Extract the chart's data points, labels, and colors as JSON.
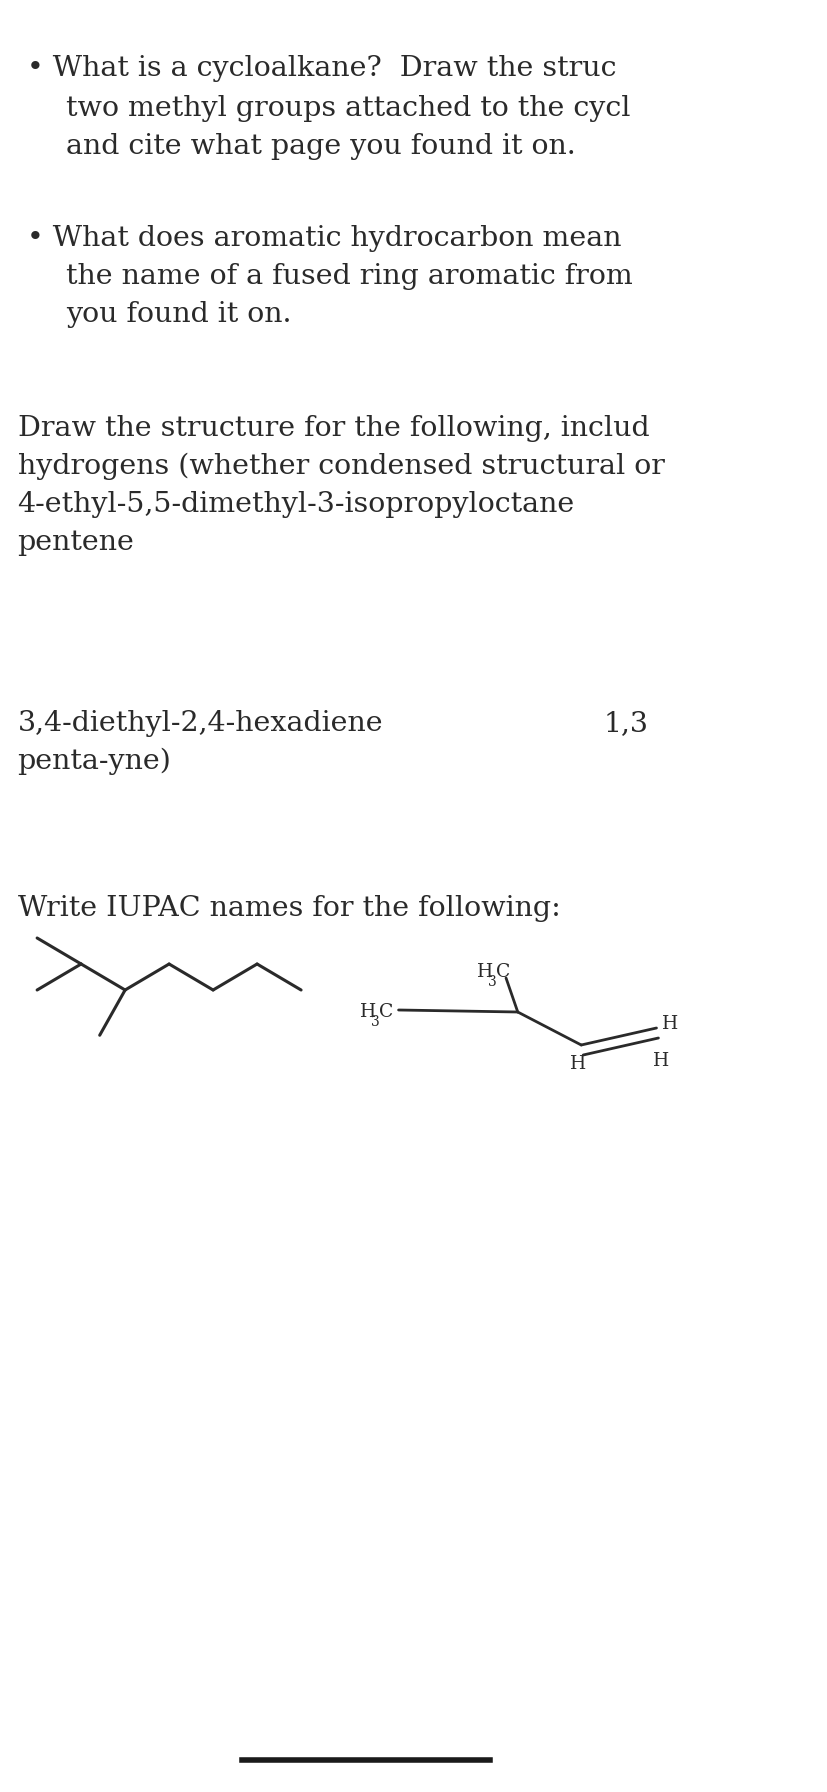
{
  "bg_color": "#ffffff",
  "text_color": "#2a2a2a",
  "font_family": "DejaVu Serif",
  "bullet1_line1": "• What is a cycloalkane?  Draw the struc",
  "bullet1_line2": "two methyl groups attached to the cycl",
  "bullet1_line3": "and cite what page you found it on.",
  "bullet2_line1": "• What does aromatic hydrocarbon mean",
  "bullet2_line2": "the name of a fused ring aromatic from",
  "bullet2_line3": "you found it on.",
  "draw_line1": "Draw the structure for the following, includ",
  "draw_line2": "hydrogens (whether condensed structural or",
  "draw_line3": "4-ethyl-5,5-dimethyl-3-isopropyloctane",
  "draw_line4": "pentene",
  "hexadiene_label": "3,4-diethyl-2,4-hexadiene",
  "pentayne_label": "penta-yne)",
  "col2_label": "1,3",
  "iupac_title": "Write IUPAC names for the following:",
  "font_size_main": 20.5,
  "font_size_mol": 13.5,
  "font_size_sub": 10
}
